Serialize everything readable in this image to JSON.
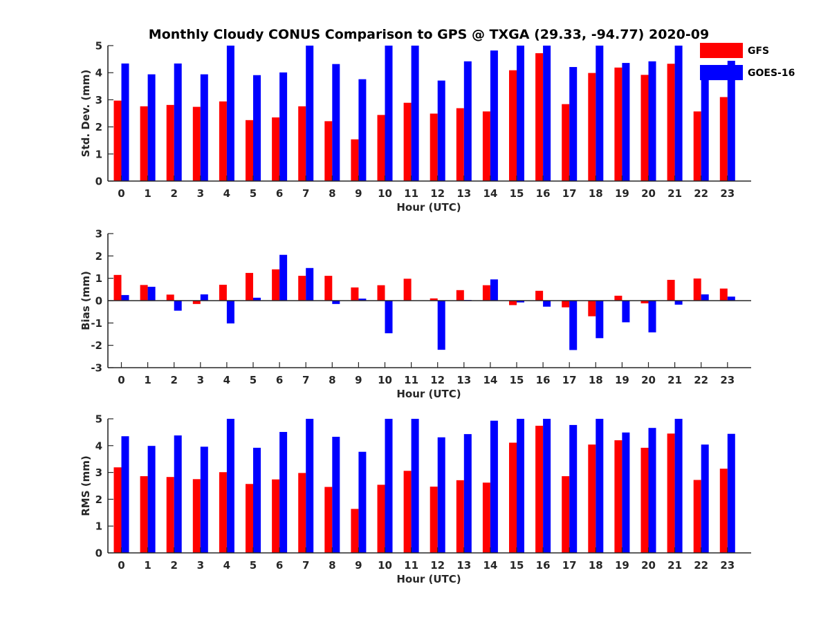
{
  "figure": {
    "title": "Monthly Cloudy CONUS Comparison to GPS @ TXGA (29.33, -94.77) 2020-09"
  },
  "legend": {
    "placement": "top-right (outside top panel)",
    "items": [
      {
        "label": "GFS",
        "color": "#ff0000"
      },
      {
        "label": "GOES-16",
        "color": "#0000ff"
      }
    ]
  },
  "chart_data": [
    {
      "type": "bar",
      "title": "Monthly Cloudy CONUS Comparison to GPS @ TXGA (29.33, -94.77) 2020-09",
      "xlabel": "Hour (UTC)",
      "ylabel": "Std. Dev. (mm)",
      "ylim": [
        0,
        5
      ],
      "yticks": [
        "0",
        "1",
        "2",
        "3",
        "4",
        "5"
      ],
      "categories": [
        "0",
        "1",
        "2",
        "3",
        "4",
        "5",
        "6",
        "7",
        "8",
        "9",
        "10",
        "11",
        "12",
        "13",
        "14",
        "15",
        "16",
        "17",
        "18",
        "19",
        "20",
        "21",
        "22",
        "23"
      ],
      "series": [
        {
          "name": "GFS",
          "color": "#ff0000",
          "values": [
            2.97,
            2.76,
            2.81,
            2.74,
            2.94,
            2.25,
            2.35,
            2.76,
            2.21,
            1.54,
            2.44,
            2.89,
            2.49,
            2.69,
            2.57,
            4.09,
            4.72,
            2.84,
            3.99,
            4.19,
            3.92,
            4.33,
            2.57,
            3.1
          ]
        },
        {
          "name": "GOES-16",
          "color": "#0000ff",
          "values": [
            4.34,
            3.94,
            4.34,
            3.94,
            5.0,
            3.91,
            4.01,
            5.0,
            4.32,
            3.76,
            5.0,
            5.0,
            3.71,
            4.42,
            4.82,
            5.0,
            5.0,
            4.21,
            5.0,
            4.36,
            4.42,
            5.0,
            4.03,
            4.44
          ]
        }
      ],
      "grid": false,
      "legend": "top-right"
    },
    {
      "type": "bar",
      "xlabel": "Hour (UTC)",
      "ylabel": "Bias (mm)",
      "ylim": [
        -3,
        3
      ],
      "yticks": [
        "-3",
        "-2",
        "-1",
        "0",
        "1",
        "2",
        "3"
      ],
      "categories": [
        "0",
        "1",
        "2",
        "3",
        "4",
        "5",
        "6",
        "7",
        "8",
        "9",
        "10",
        "11",
        "12",
        "13",
        "14",
        "15",
        "16",
        "17",
        "18",
        "19",
        "20",
        "21",
        "22",
        "23"
      ],
      "series": [
        {
          "name": "GFS",
          "color": "#ff0000",
          "values": [
            1.15,
            0.7,
            0.27,
            -0.15,
            0.71,
            1.24,
            1.4,
            1.11,
            1.11,
            0.59,
            0.69,
            0.98,
            0.1,
            0.47,
            0.69,
            -0.2,
            0.44,
            -0.3,
            -0.7,
            0.22,
            -0.12,
            0.93,
            0.99,
            0.54
          ]
        },
        {
          "name": "GOES-16",
          "color": "#0000ff",
          "values": [
            0.25,
            0.62,
            -0.45,
            0.28,
            -1.02,
            0.13,
            2.05,
            1.46,
            -0.15,
            0.09,
            -1.46,
            0.0,
            -2.2,
            0.03,
            0.95,
            -0.08,
            -0.27,
            -2.21,
            -1.68,
            -0.97,
            -1.42,
            -0.18,
            0.28,
            0.18
          ]
        }
      ],
      "grid": false
    },
    {
      "type": "bar",
      "xlabel": "Hour (UTC)",
      "ylabel": "RMS (mm)",
      "ylim": [
        0,
        5
      ],
      "yticks": [
        "0",
        "1",
        "2",
        "3",
        "4",
        "5"
      ],
      "categories": [
        "0",
        "1",
        "2",
        "3",
        "4",
        "5",
        "6",
        "7",
        "8",
        "9",
        "10",
        "11",
        "12",
        "13",
        "14",
        "15",
        "16",
        "17",
        "18",
        "19",
        "20",
        "21",
        "22",
        "23"
      ],
      "series": [
        {
          "name": "GFS",
          "color": "#ff0000",
          "values": [
            3.19,
            2.86,
            2.83,
            2.75,
            3.01,
            2.57,
            2.74,
            2.98,
            2.46,
            1.64,
            2.54,
            3.06,
            2.47,
            2.71,
            2.62,
            4.11,
            4.74,
            2.86,
            4.04,
            4.2,
            3.92,
            4.45,
            2.72,
            3.14
          ]
        },
        {
          "name": "GOES-16",
          "color": "#0000ff",
          "values": [
            4.35,
            3.99,
            4.38,
            3.96,
            5.0,
            3.92,
            4.51,
            5.0,
            4.33,
            3.77,
            5.0,
            5.0,
            4.31,
            4.43,
            4.93,
            5.0,
            5.0,
            4.77,
            5.0,
            4.49,
            4.66,
            5.0,
            4.04,
            4.44
          ]
        }
      ],
      "grid": false
    }
  ]
}
